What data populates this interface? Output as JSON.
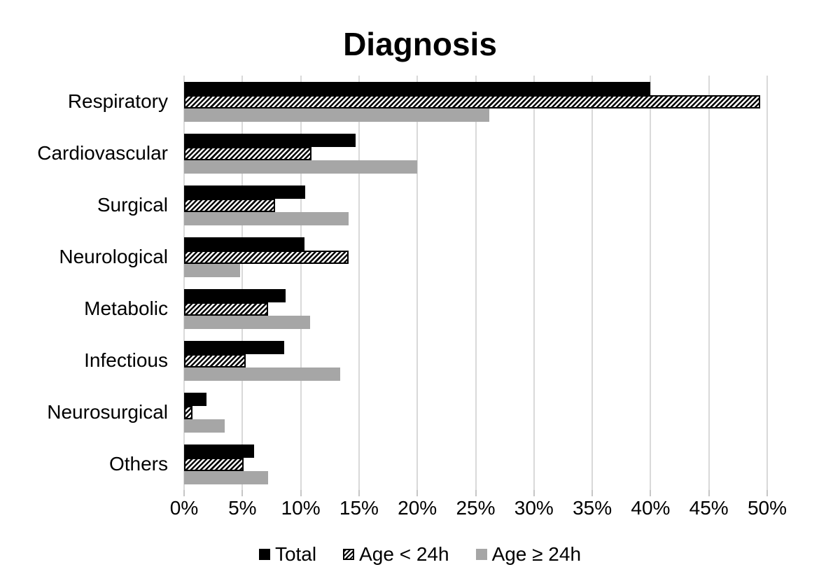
{
  "chart_data": {
    "type": "bar",
    "orientation": "horizontal",
    "title": "Diagnosis",
    "categories": [
      "Respiratory",
      "Cardiovascular",
      "Surgical",
      "Neurological",
      "Metabolic",
      "Infectious",
      "Neurosurgical",
      "Others"
    ],
    "series": [
      {
        "name": "Total",
        "style": "solid-black",
        "values": [
          40.0,
          14.7,
          10.4,
          10.3,
          8.7,
          8.6,
          1.9,
          6.0
        ]
      },
      {
        "name": "Age < 24h",
        "style": "hatched",
        "values": [
          49.4,
          10.9,
          7.8,
          14.1,
          7.2,
          5.3,
          0.7,
          5.1
        ]
      },
      {
        "name": "Age ≥ 24h",
        "style": "solid-gray",
        "values": [
          26.2,
          20.0,
          14.1,
          4.8,
          10.8,
          13.4,
          3.5,
          7.2
        ]
      }
    ],
    "x_axis": {
      "min": 0,
      "max": 50,
      "tick_step": 5,
      "tick_labels": [
        "0%",
        "5%",
        "10%",
        "15%",
        "20%",
        "25%",
        "30%",
        "35%",
        "40%",
        "45%",
        "50%"
      ],
      "unit": "percent"
    },
    "legend": {
      "position": "bottom",
      "entries": [
        "Total",
        "Age < 24h",
        "Age ≥ 24h"
      ]
    },
    "grid": true,
    "colors": {
      "total_bar": "#000000",
      "age_lt_24h_pattern": "black-white-diagonal-hatch",
      "age_ge_24h_bar": "#a6a6a6",
      "gridline": "#d9d9d9",
      "text": "#000000",
      "background": "#ffffff"
    }
  }
}
